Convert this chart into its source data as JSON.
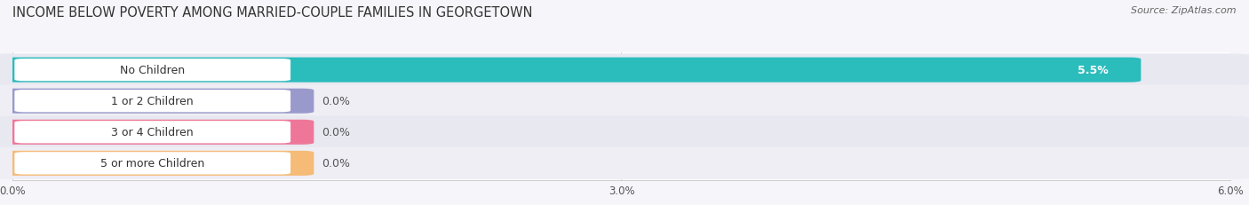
{
  "title": "INCOME BELOW POVERTY AMONG MARRIED-COUPLE FAMILIES IN GEORGETOWN",
  "source": "Source: ZipAtlas.com",
  "categories": [
    "No Children",
    "1 or 2 Children",
    "3 or 4 Children",
    "5 or more Children"
  ],
  "values": [
    5.5,
    0.0,
    0.0,
    0.0
  ],
  "bar_colors": [
    "#2bbcbc",
    "#9999cc",
    "#ee7799",
    "#f5bb77"
  ],
  "xlim": [
    0,
    6.0
  ],
  "xticks": [
    0.0,
    3.0,
    6.0
  ],
  "xtick_labels": [
    "0.0%",
    "3.0%",
    "6.0%"
  ],
  "bar_height": 0.68,
  "title_fontsize": 10.5,
  "label_fontsize": 9,
  "value_fontsize": 9,
  "source_fontsize": 8,
  "row_colors": [
    "#e8e8f0",
    "#eeeef4"
  ]
}
